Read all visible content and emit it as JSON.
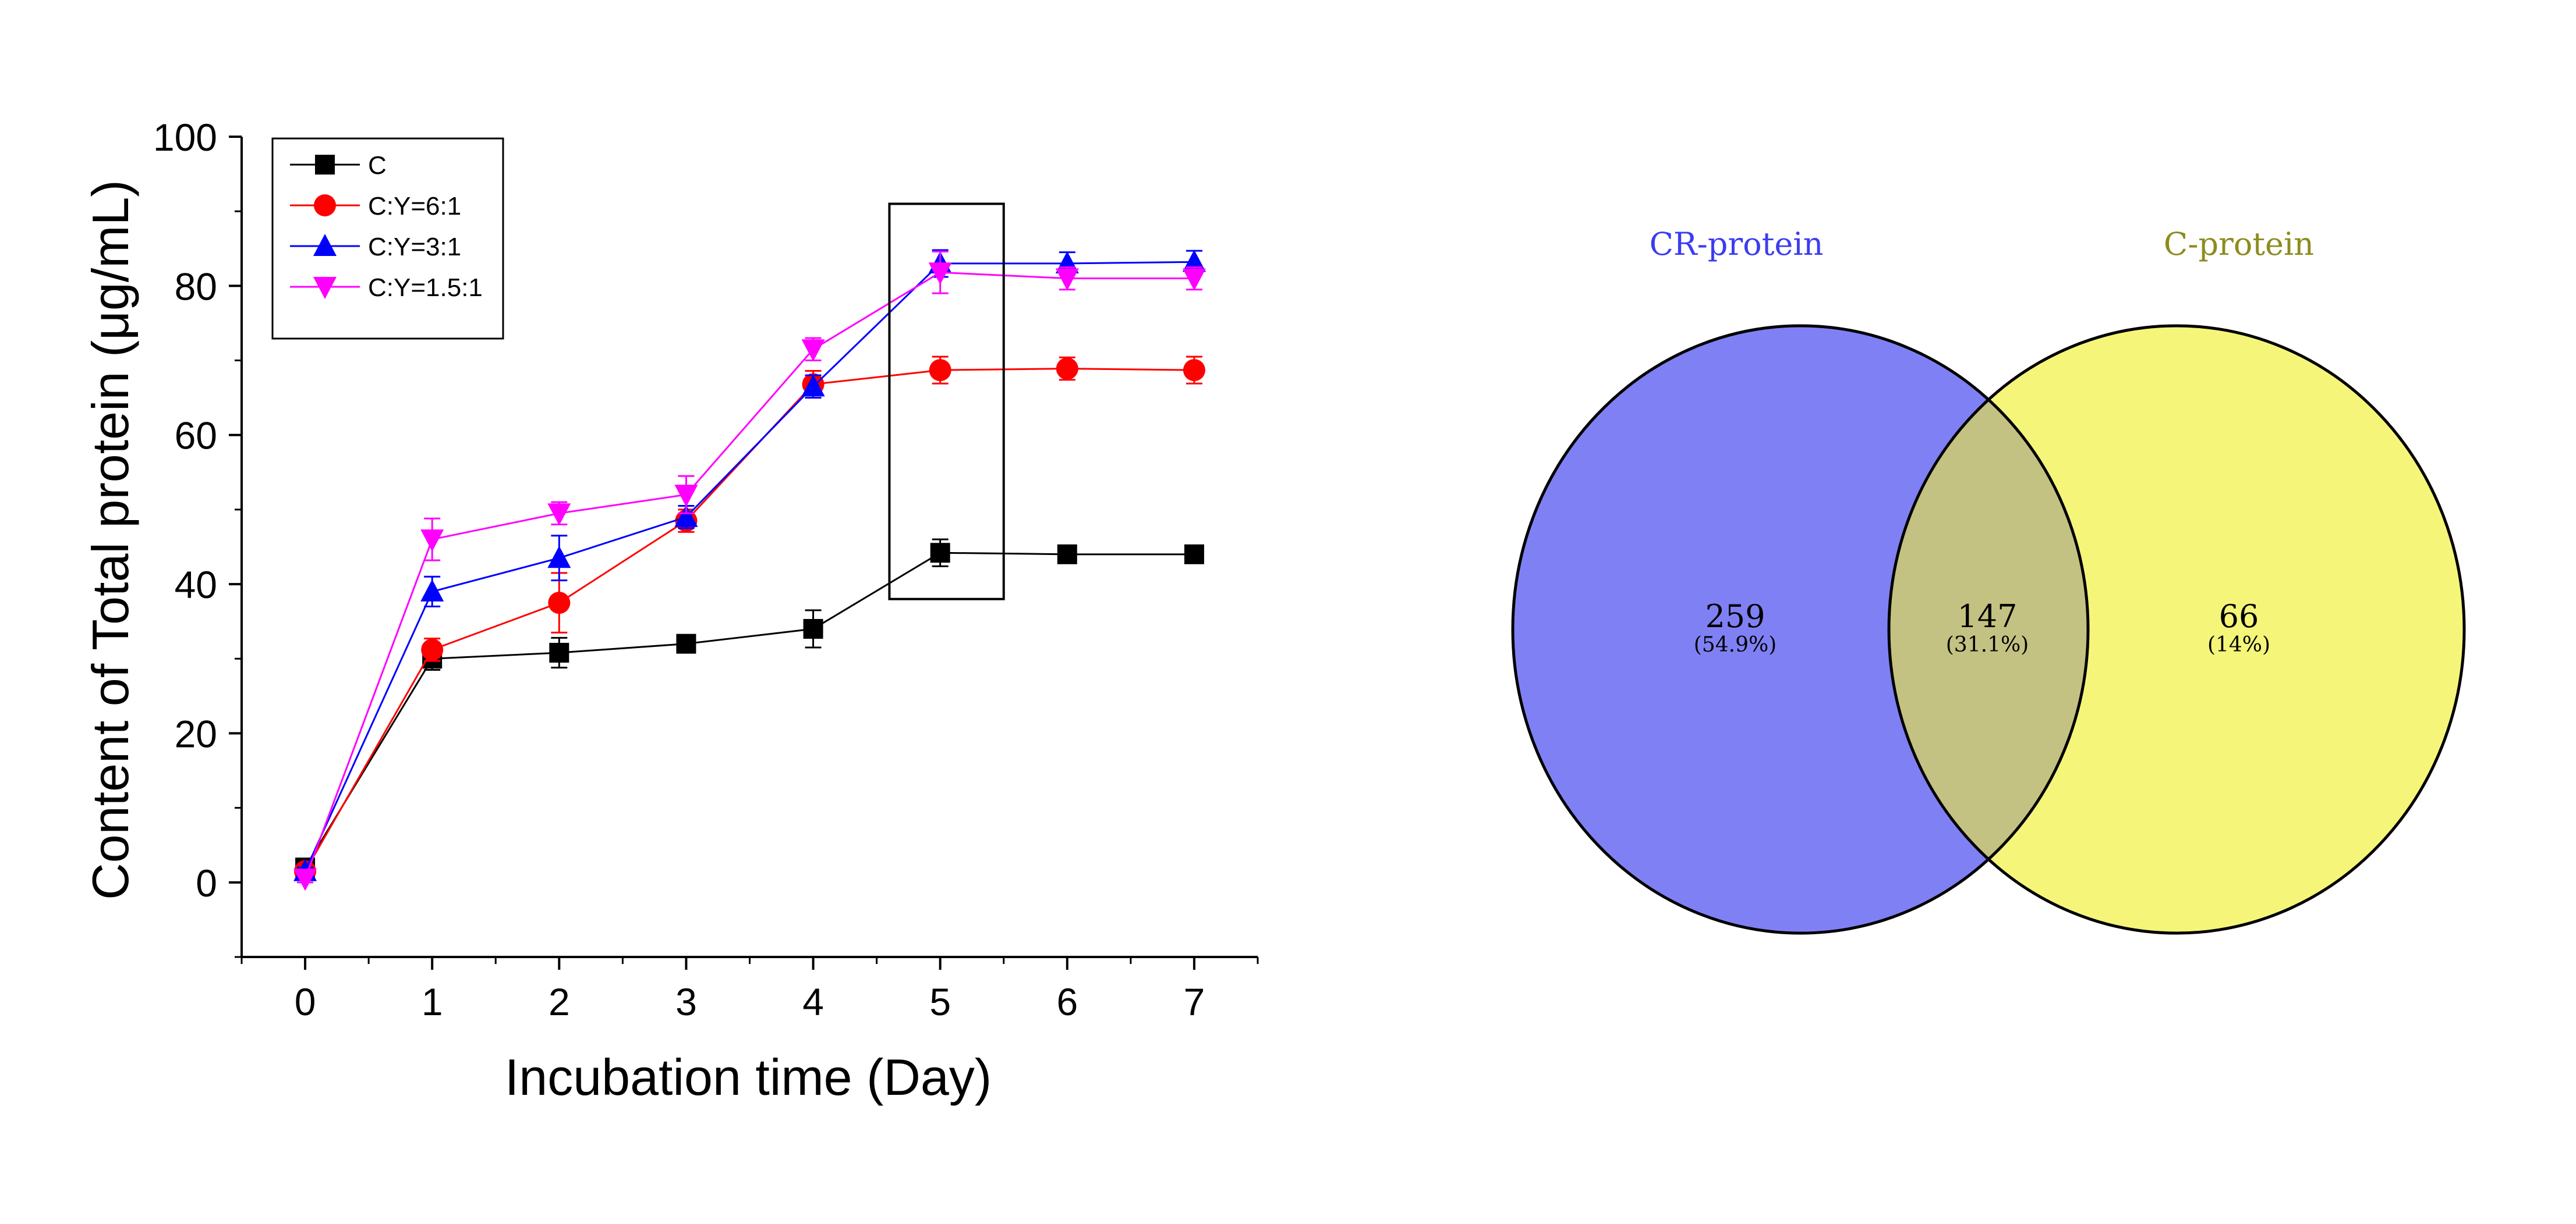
{
  "chart_data": [
    {
      "type": "line",
      "title": "",
      "xlabel": "Incubation time (Day)",
      "ylabel": "Content of Total protein (μg/mL)",
      "x": [
        0,
        1,
        2,
        3,
        4,
        5,
        6,
        7
      ],
      "xlim": [
        -0.5,
        7.5
      ],
      "ylim": [
        -10,
        100
      ],
      "xticks": [
        0,
        1,
        2,
        3,
        4,
        5,
        6,
        7
      ],
      "yticks": [
        0,
        20,
        40,
        60,
        80,
        100
      ],
      "grid": false,
      "legend_position": "top-left",
      "series": [
        {
          "name": "C",
          "marker": "square",
          "color": "#000000",
          "values": [
            2,
            30,
            30.8,
            32,
            34,
            44.2,
            44,
            44
          ],
          "errors": [
            0.5,
            1.5,
            2,
            1,
            2.5,
            1.8,
            1,
            1
          ]
        },
        {
          "name": "C:Y=6:1",
          "marker": "circle",
          "color": "#ff0000",
          "values": [
            1.5,
            31.2,
            37.5,
            48.5,
            66.8,
            68.7,
            68.9,
            68.7
          ],
          "errors": [
            0.5,
            1.5,
            4,
            1.5,
            1.8,
            1.8,
            1.5,
            1.8
          ]
        },
        {
          "name": "C:Y=3:1",
          "marker": "triangle-up",
          "color": "#0000ff",
          "values": [
            1.5,
            39,
            43.5,
            49,
            66.5,
            83,
            83,
            83.2
          ],
          "errors": [
            0.5,
            2,
            3,
            1.5,
            1.5,
            1.8,
            1.5,
            1.5
          ]
        },
        {
          "name": "C:Y=1.5:1",
          "marker": "triangle-down",
          "color": "#ff00ff",
          "values": [
            0.5,
            46,
            49.5,
            52,
            71.5,
            81.8,
            81,
            81
          ],
          "errors": [
            0.5,
            2.8,
            1.5,
            2.5,
            1.5,
            2.8,
            1.5,
            1.5
          ]
        }
      ],
      "annotations": [
        {
          "type": "rectangle",
          "x_range": [
            4.6,
            5.5
          ],
          "y_range": [
            38,
            91
          ]
        }
      ]
    },
    {
      "type": "venn",
      "title": "",
      "sets": [
        {
          "name": "CR-protein",
          "color": "#8080f5",
          "label_color": "#3c3cf0"
        },
        {
          "name": "C-protein",
          "color": "#f5f57a",
          "label_color": "#8c8c1e"
        }
      ],
      "intersection_color": "#c4c282",
      "regions": [
        {
          "region": "CR-protein only",
          "count": "259",
          "percent": "(54.9%)"
        },
        {
          "region": "CR-protein ∩ C-protein",
          "count": "147",
          "percent": "(31.1%)"
        },
        {
          "region": "C-protein only",
          "count": "66",
          "percent": "(14%)"
        }
      ]
    }
  ]
}
